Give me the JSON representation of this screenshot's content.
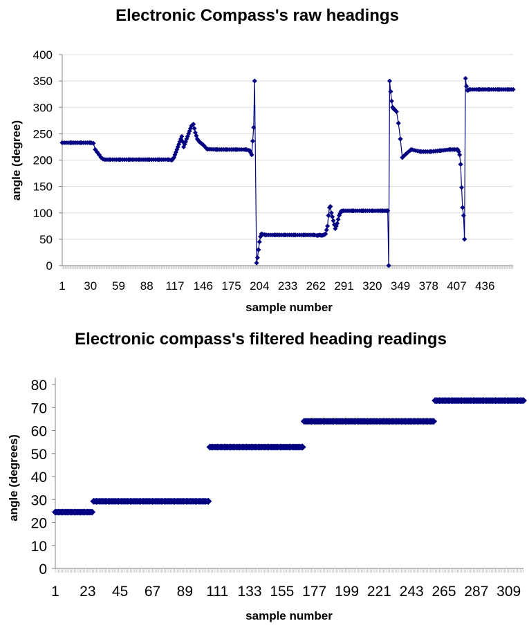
{
  "chart_data": [
    {
      "type": "line",
      "title": "Electronic Compass's raw headings",
      "xlabel": "sample number",
      "ylabel": "angle (degree)",
      "ylim": [
        0,
        400
      ],
      "yticks": [
        0,
        50,
        100,
        150,
        200,
        250,
        300,
        350,
        400
      ],
      "xlim": [
        1,
        465
      ],
      "xticks": [
        1,
        30,
        59,
        88,
        117,
        146,
        175,
        204,
        233,
        262,
        291,
        320,
        349,
        378,
        407,
        436
      ],
      "grid": true,
      "legend": "none",
      "marker": "diamond",
      "color": "#000080",
      "series": [
        {
          "x": [
            1,
            10,
            20,
            30,
            33,
            35,
            37,
            39,
            41,
            43,
            45,
            50,
            60,
            70,
            80,
            90,
            100,
            110,
            114,
            116,
            118,
            120,
            122,
            124,
            126,
            128,
            130,
            132,
            134,
            136,
            138,
            140,
            142,
            144,
            146,
            150,
            160,
            170,
            180,
            190,
            194,
            196,
            198,
            199,
            201,
            202,
            203,
            204,
            205,
            206,
            210,
            220,
            230,
            240,
            250,
            260,
            264,
            266,
            268,
            270,
            272,
            274,
            275,
            276,
            277,
            278,
            280,
            282,
            284,
            286,
            288,
            290,
            300,
            310,
            320,
            330,
            333,
            335,
            336,
            337,
            338,
            339,
            340,
            341,
            342,
            343,
            345,
            347,
            349,
            351,
            355,
            360,
            370,
            380,
            390,
            400,
            405,
            408,
            409,
            410,
            411,
            412,
            413,
            414,
            415,
            416,
            417,
            418,
            420,
            430,
            440,
            450,
            460,
            465
          ],
          "y": [
            233,
            233,
            233,
            233,
            232,
            220,
            215,
            210,
            205,
            202,
            201,
            201,
            201,
            201,
            201,
            201,
            201,
            201,
            200,
            205,
            215,
            225,
            235,
            245,
            225,
            235,
            245,
            255,
            265,
            268,
            252,
            240,
            235,
            232,
            229,
            221,
            220,
            220,
            220,
            220,
            218,
            210,
            262,
            350,
            5,
            15,
            30,
            45,
            55,
            60,
            58,
            58,
            58,
            58,
            58,
            58,
            57,
            58,
            57,
            58,
            60,
            75,
            95,
            110,
            112,
            100,
            85,
            70,
            80,
            95,
            103,
            104,
            104,
            104,
            104,
            104,
            104,
            104,
            104,
            0,
            350,
            330,
            312,
            300,
            297,
            296,
            292,
            270,
            240,
            205,
            212,
            220,
            216,
            216,
            218,
            220,
            220,
            220,
            216,
            210,
            192,
            148,
            110,
            95,
            50,
            355,
            340,
            332,
            334,
            334,
            334,
            334,
            334,
            334
          ]
        }
      ]
    },
    {
      "type": "scatter",
      "title": "Electronic compass's filtered heading readings",
      "xlabel": "sample number",
      "ylabel": "angle (degrees)",
      "ylim": [
        0,
        80
      ],
      "yticks": [
        0,
        10,
        20,
        30,
        40,
        50,
        60,
        70,
        80
      ],
      "xlim": [
        1,
        319
      ],
      "xticks": [
        1,
        23,
        45,
        67,
        89,
        111,
        133,
        155,
        177,
        199,
        221,
        243,
        265,
        287,
        309
      ],
      "grid": false,
      "legend": "none",
      "marker": "diamond",
      "color": "#000080",
      "series": [
        {
          "segments": [
            {
              "x0": 1,
              "x1": 26,
              "y": 24.5
            },
            {
              "x0": 27,
              "x1": 105,
              "y": 29.2
            },
            {
              "x0": 106,
              "x1": 169,
              "y": 52.8
            },
            {
              "x0": 170,
              "x1": 258,
              "y": 64.0
            },
            {
              "x0": 259,
              "x1": 319,
              "y": 73.0
            }
          ]
        }
      ]
    }
  ]
}
